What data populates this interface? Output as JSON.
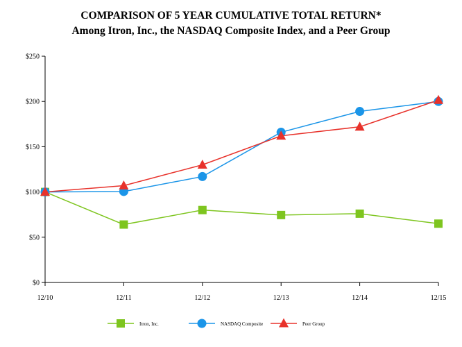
{
  "chart_data": {
    "type": "line",
    "title": "COMPARISON OF 5 YEAR CUMULATIVE TOTAL RETURN*",
    "subtitle": "Among Itron, Inc., the NASDAQ Composite Index, and a Peer Group",
    "categories": [
      "12/10",
      "12/11",
      "12/12",
      "12/13",
      "12/14",
      "12/15"
    ],
    "y_ticks": [
      "$0",
      "$50",
      "$100",
      "$150",
      "$200",
      "$250"
    ],
    "ylim": [
      0,
      250
    ],
    "xlabel": "",
    "ylabel": "",
    "grid": false,
    "legend_position": "bottom",
    "series": [
      {
        "name": "Itron, Inc.",
        "values": [
          100,
          64,
          80,
          74.5,
          76,
          65
        ],
        "color": "#7ec51f",
        "marker": "square"
      },
      {
        "name": "NASDAQ Composite",
        "values": [
          100,
          100.5,
          117,
          166,
          189,
          200
        ],
        "color": "#1b95e8",
        "marker": "circle"
      },
      {
        "name": "Peer Group",
        "values": [
          100,
          107,
          130,
          162,
          172,
          201.5
        ],
        "color": "#e8322b",
        "marker": "triangle"
      }
    ]
  }
}
